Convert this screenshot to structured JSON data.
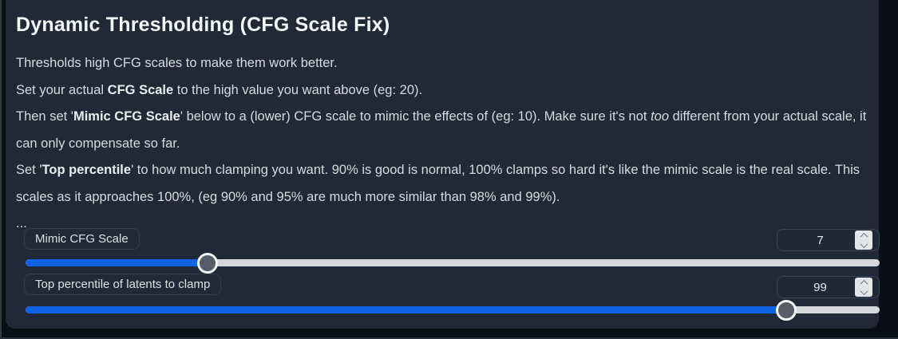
{
  "colors": {
    "background": "#0a0e17",
    "panel": "#212938",
    "accent": "#0f64e6",
    "track": "#d7d8dc",
    "handle": "#565c68"
  },
  "panel": {
    "title": "Dynamic Thresholding (CFG Scale Fix)",
    "description": {
      "lines": [
        [
          {
            "t": "Thresholds high CFG scales to make them work better."
          }
        ],
        [
          {
            "t": "Set your actual "
          },
          {
            "t": "CFG Scale",
            "b": true
          },
          {
            "t": " to the high value you want above (eg: 20)."
          }
        ],
        [
          {
            "t": "Then set '"
          },
          {
            "t": "Mimic CFG Scale",
            "b": true
          },
          {
            "t": "' below to a (lower) CFG scale to mimic the effects of (eg: 10). Make sure it's not "
          },
          {
            "t": "too",
            "i": true
          },
          {
            "t": " different from your actual scale, it can only compensate so far."
          }
        ],
        [
          {
            "t": "Set '"
          },
          {
            "t": "Top percentile",
            "b": true
          },
          {
            "t": "' to how much clamping you want. 90% is good is normal, 100% clamps so hard it's like the mimic scale is the real scale. This scales as it approaches 100%, (eg 90% and 95% are much more similar than 98% and 99%)."
          }
        ],
        [
          {
            "t": "..."
          }
        ]
      ]
    },
    "sliders": [
      {
        "label": "Mimic CFG Scale",
        "value": "7",
        "percent": 21.3
      },
      {
        "label": "Top percentile of latents to clamp",
        "value": "99",
        "percent": 89.1
      }
    ]
  }
}
